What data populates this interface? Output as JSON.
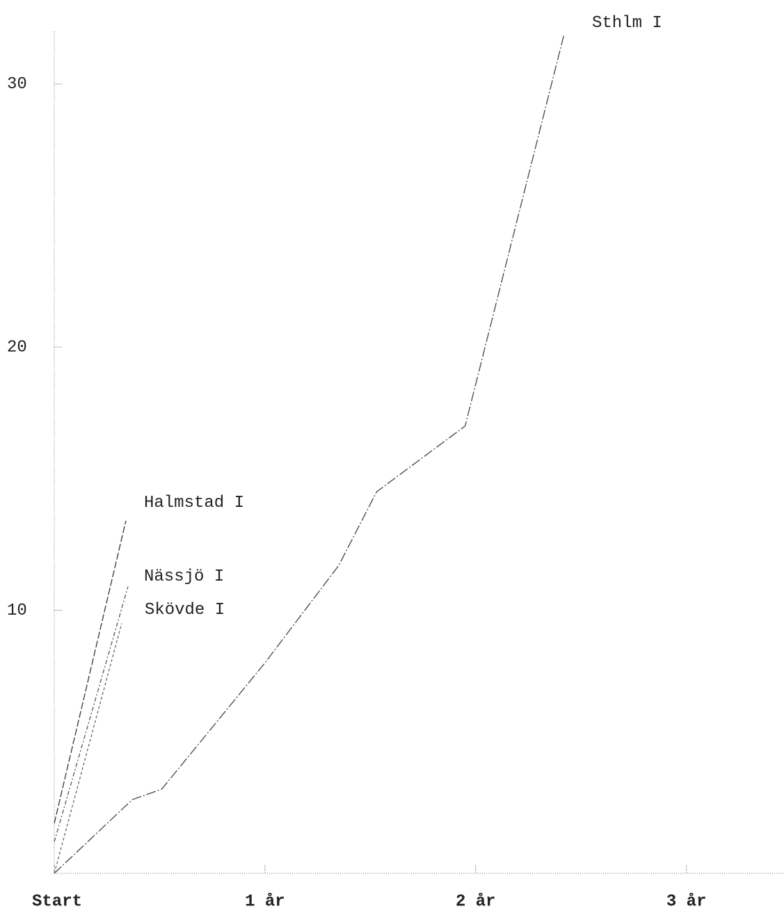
{
  "chart_data": {
    "type": "line",
    "xlim": [
      0,
      3.46
    ],
    "ylim": [
      0,
      32
    ],
    "xticks": [
      {
        "value": 0,
        "label": "Start"
      },
      {
        "value": 1,
        "label": "1 år"
      },
      {
        "value": 2,
        "label": "2 år"
      },
      {
        "value": 3,
        "label": "3 år"
      }
    ],
    "yticks": [
      10,
      20,
      30
    ],
    "series": [
      {
        "name": "Sthlm I",
        "color": "#444444",
        "x": [
          0,
          0.37,
          0.51,
          1.0,
          1.35,
          1.53,
          1.95,
          2.42
        ],
        "values": [
          0,
          2.8,
          3.2,
          8.0,
          11.7,
          14.5,
          17.0,
          31.9
        ]
      },
      {
        "name": "Halmstad I",
        "color": "#333333",
        "x": [
          0,
          0.34
        ],
        "values": [
          1.9,
          13.4
        ]
      },
      {
        "name": "Nässjö I",
        "color": "#555555",
        "x": [
          0,
          0.35
        ],
        "values": [
          1.2,
          10.9
        ]
      },
      {
        "name": "Skövde I",
        "color": "#666666",
        "x": [
          0,
          0.32
        ],
        "values": [
          0,
          9.5
        ]
      }
    ]
  }
}
